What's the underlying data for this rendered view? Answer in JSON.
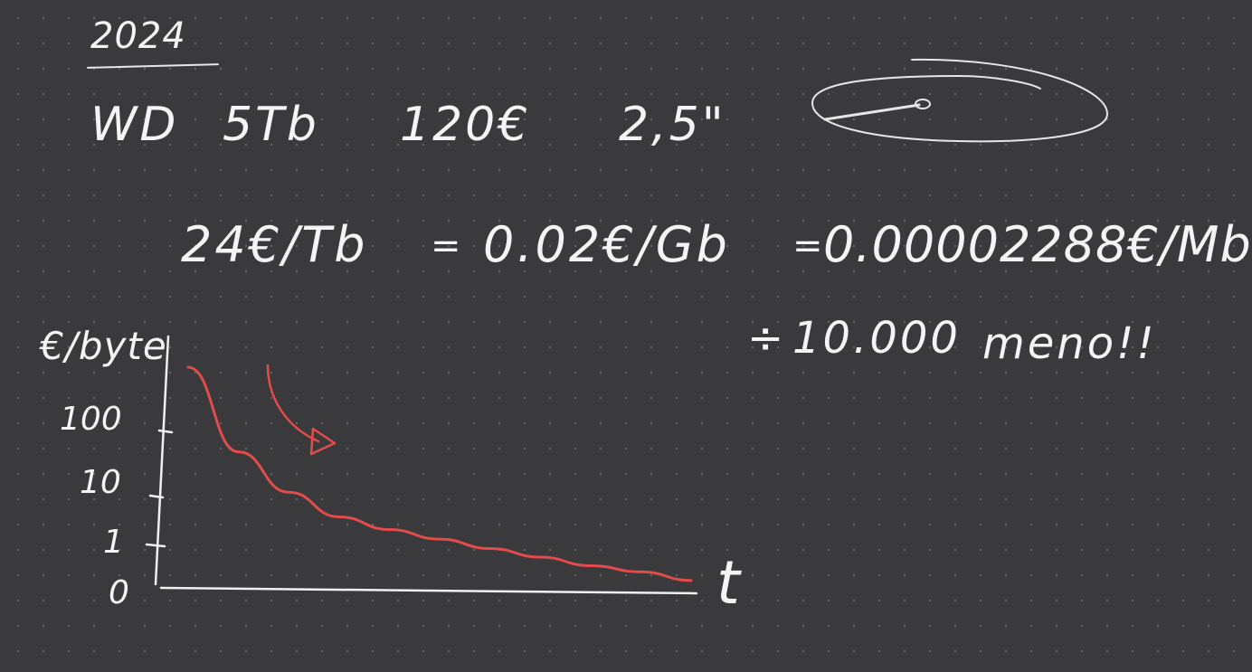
{
  "header": {
    "year": "2024"
  },
  "drive": {
    "brand": "WD",
    "capacity": "5Tb",
    "price": "120€",
    "form_factor": "2,5\""
  },
  "cost_line": {
    "per_tb": "24€/Tb",
    "eq1": "=",
    "per_gb": "0.02€/Gb",
    "eq2": "=",
    "per_mb": "0.00002288€/Mb"
  },
  "comparison": {
    "operator": "÷",
    "factor": "10.000",
    "note": "meno!!"
  },
  "chart_data": {
    "type": "line",
    "ylabel": "€/byte",
    "xlabel": "t",
    "y_ticks": [
      "0",
      "1",
      "10",
      "100"
    ],
    "series": [
      {
        "color": "#e24c4c",
        "trend": "decreasing",
        "x": [
          0,
          1,
          2,
          3,
          4,
          5,
          6,
          7,
          8,
          9,
          10
        ],
        "y": [
          1000,
          50,
          12,
          4,
          2.2,
          1.4,
          0.9,
          0.6,
          0.4,
          0.3,
          0.2
        ]
      }
    ],
    "grid": false
  },
  "colors": {
    "background": "#3a393b",
    "ink": "#f4f4f4",
    "curve": "#e24c4c"
  },
  "icons": {
    "drive_sketch": "hard-disk-platter-icon",
    "down_arrow": "curved-arrow-icon"
  }
}
